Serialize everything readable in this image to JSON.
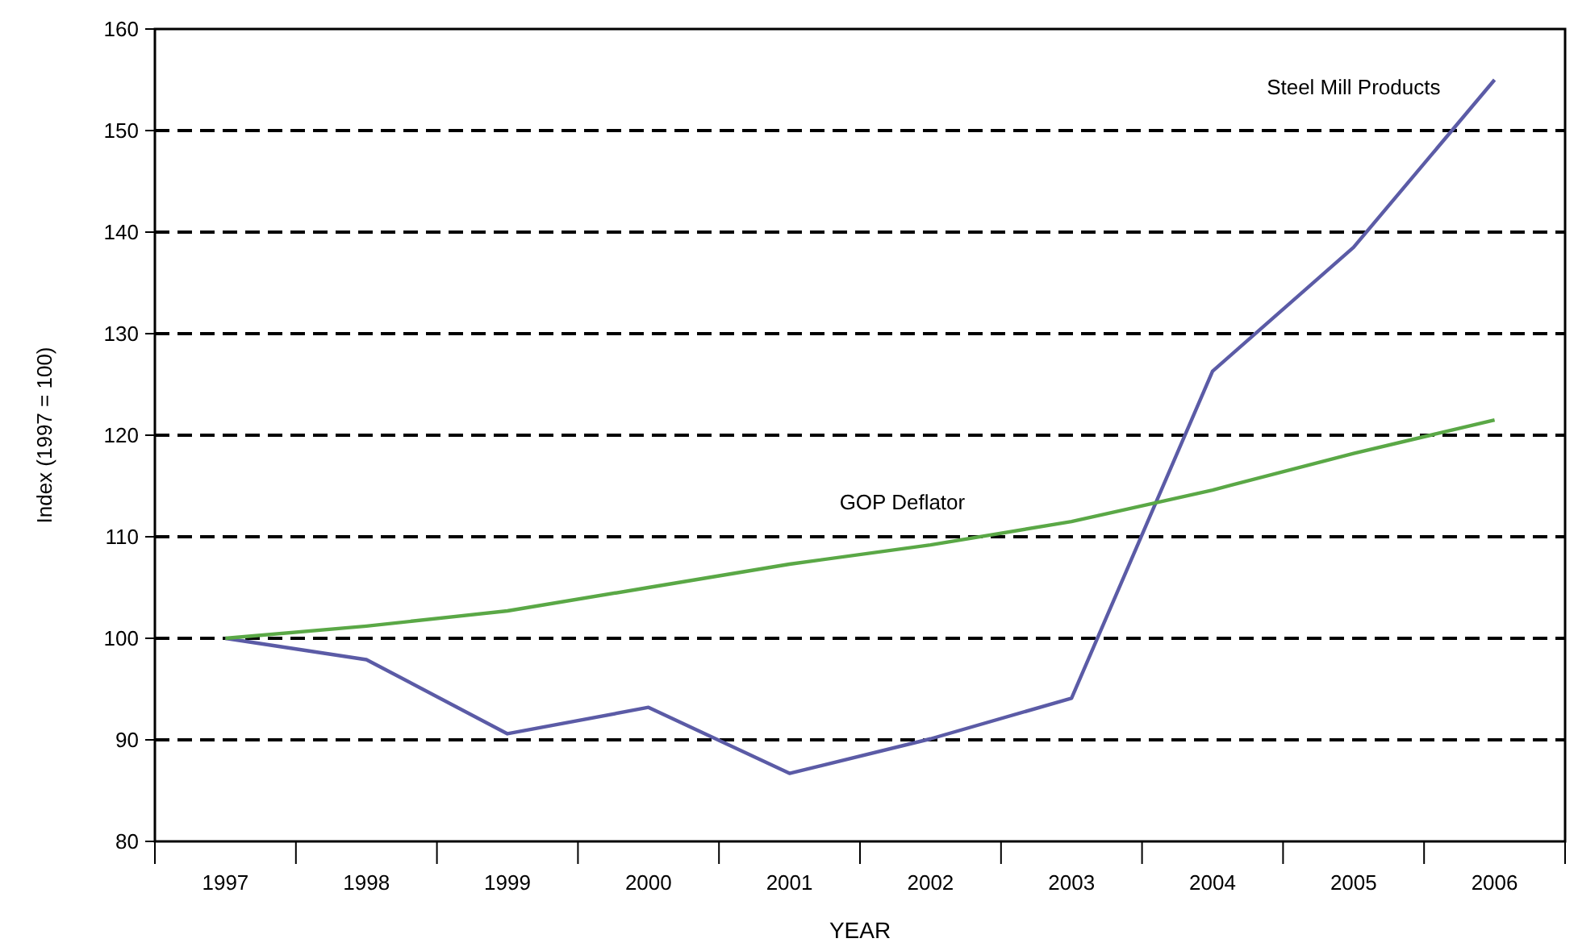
{
  "chart_data": {
    "type": "line",
    "xlabel": "YEAR",
    "ylabel": "Index (1997 = 100)",
    "categories": [
      "1997",
      "1998",
      "1999",
      "2000",
      "2001",
      "2002",
      "2003",
      "2004",
      "2005",
      "2006"
    ],
    "series": [
      {
        "name": "Steel Mill Products",
        "color": "#5b5ba6",
        "values": [
          100,
          97.9,
          90.6,
          93.2,
          86.7,
          90.1,
          94.1,
          126.3,
          138.5,
          155
        ]
      },
      {
        "name": "GOP Deflator",
        "color": "#5aa846",
        "values": [
          100,
          101.2,
          102.7,
          105,
          107.3,
          109.2,
          111.5,
          114.6,
          118.2,
          121.5
        ]
      }
    ],
    "ylim": [
      80,
      160
    ],
    "yticks": [
      80,
      90,
      100,
      110,
      120,
      130,
      140,
      150,
      160
    ],
    "grid": "y",
    "marker": "none",
    "line_style": "solid"
  }
}
